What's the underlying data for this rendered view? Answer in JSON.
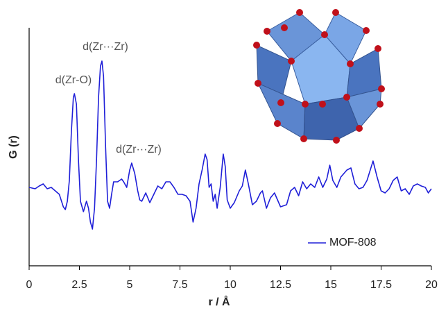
{
  "chart_data": {
    "type": "line",
    "x_label": "r / Å",
    "y_label": "G (r)",
    "annotations": [
      "d(Zr-O)",
      "d(Zr···Zr)",
      "d(Zr···Zr)"
    ],
    "xlim": [
      0,
      20
    ],
    "ylim": [
      -1.13,
      2.3
    ],
    "xticks": [
      0,
      2.5,
      5,
      7.5,
      10,
      12.5,
      15,
      17.5,
      20
    ],
    "legend": "bottom-right",
    "series": [
      {
        "name": "MOF-808",
        "color": "#1f1fd8",
        "x": [
          0,
          0.3,
          0.5,
          0.7,
          0.9,
          1.1,
          1.3,
          1.5,
          1.7,
          1.8,
          1.9,
          2.0,
          2.1,
          2.2,
          2.25,
          2.35,
          2.45,
          2.55,
          2.7,
          2.85,
          2.95,
          3.05,
          3.15,
          3.25,
          3.35,
          3.45,
          3.55,
          3.62,
          3.7,
          3.8,
          3.9,
          4.0,
          4.1,
          4.2,
          4.4,
          4.6,
          4.7,
          4.85,
          5.0,
          5.1,
          5.25,
          5.4,
          5.5,
          5.6,
          5.8,
          6.0,
          6.2,
          6.4,
          6.6,
          6.8,
          7.0,
          7.2,
          7.4,
          7.6,
          7.8,
          8.0,
          8.15,
          8.3,
          8.45,
          8.6,
          8.75,
          8.85,
          8.95,
          9.05,
          9.15,
          9.25,
          9.35,
          9.5,
          9.65,
          9.75,
          9.85,
          10.0,
          10.2,
          10.45,
          10.6,
          10.75,
          10.9,
          11.1,
          11.3,
          11.5,
          11.6,
          11.8,
          12.0,
          12.2,
          12.5,
          12.8,
          13.0,
          13.2,
          13.4,
          13.6,
          13.8,
          14.0,
          14.2,
          14.4,
          14.6,
          14.8,
          14.95,
          15.1,
          15.3,
          15.5,
          15.8,
          16.0,
          16.2,
          16.4,
          16.6,
          16.8,
          17.1,
          17.3,
          17.5,
          17.7,
          17.9,
          18.1,
          18.3,
          18.5,
          18.7,
          18.9,
          19.1,
          19.3,
          19.5,
          19.7,
          19.85,
          20
        ],
        "values": [
          0,
          -0.02,
          0.02,
          0.05,
          -0.02,
          0,
          -0.05,
          -0.1,
          -0.28,
          -0.32,
          -0.2,
          0.1,
          0.8,
          1.3,
          1.35,
          1.2,
          0.4,
          -0.2,
          -0.35,
          -0.2,
          -0.3,
          -0.5,
          -0.6,
          -0.3,
          0.4,
          1.3,
          1.75,
          1.82,
          1.6,
          0.6,
          -0.2,
          -0.3,
          -0.1,
          0.08,
          0.08,
          0.12,
          0.08,
          0,
          0.25,
          0.35,
          0.2,
          -0.05,
          -0.18,
          -0.2,
          -0.08,
          -0.22,
          -0.1,
          0.02,
          -0.02,
          0.08,
          0.08,
          0,
          -0.1,
          -0.1,
          -0.12,
          -0.2,
          -0.5,
          -0.3,
          0.05,
          0.25,
          0.48,
          0.4,
          0,
          0.05,
          -0.2,
          -0.1,
          -0.3,
          0,
          0.48,
          0.3,
          -0.18,
          -0.3,
          -0.22,
          -0.05,
          0.02,
          0.25,
          0.05,
          -0.25,
          -0.2,
          -0.08,
          -0.05,
          -0.3,
          -0.15,
          -0.08,
          -0.28,
          -0.25,
          -0.05,
          0,
          -0.12,
          0.08,
          -0.02,
          0.05,
          0,
          0.15,
          0,
          0.12,
          0.32,
          0.1,
          0,
          0.15,
          0.25,
          0.28,
          0.05,
          -0.02,
          0,
          0.1,
          0.38,
          0.15,
          -0.05,
          -0.08,
          -0.02,
          0.1,
          0.15,
          -0.05,
          -0.02,
          -0.1,
          0.02,
          0.05,
          0.02,
          0,
          -0.08,
          -0.02
        ]
      }
    ]
  }
}
